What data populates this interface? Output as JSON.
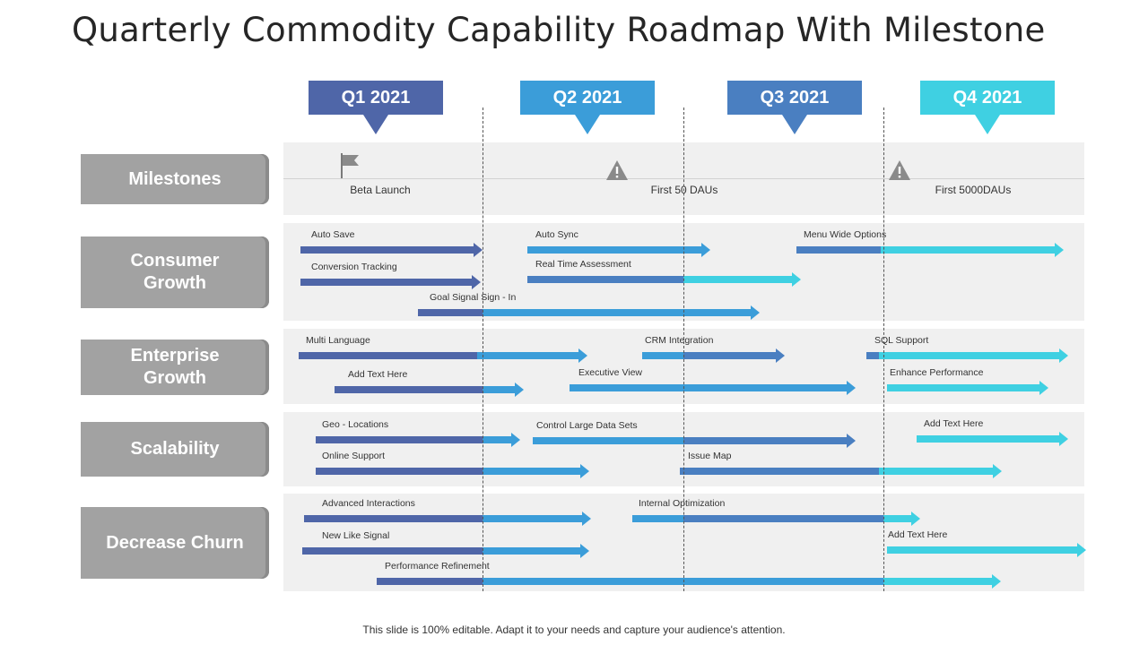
{
  "title": "Quarterly Commodity Capability Roadmap With Milestone",
  "quarters": [
    {
      "label": "Q1 2021",
      "color": "#4f66a8"
    },
    {
      "label": "Q2 2021",
      "color": "#3b9dd9"
    },
    {
      "label": "Q3 2021",
      "color": "#4a7fc1"
    },
    {
      "label": "Q4 2021",
      "color": "#3fd0e2"
    }
  ],
  "rows": [
    {
      "label": "Milestones"
    },
    {
      "label": "Consumer\nGrowth"
    },
    {
      "label": "Enterprise\nGrowth"
    },
    {
      "label": "Scalability"
    },
    {
      "label": "Decrease Churn"
    }
  ],
  "milestones": [
    {
      "label": "Beta Launch",
      "icon": "flag-icon"
    },
    {
      "label": "First 50 DAUs",
      "icon": "warning-icon"
    },
    {
      "label": "First 5000DAUs",
      "icon": "warning-icon"
    }
  ],
  "colors": {
    "q1": "#4f66a8",
    "q2": "#3b9dd9",
    "q3": "#4a7fc1",
    "q4": "#3fd0e2"
  },
  "tasks": [
    {
      "label": "Auto Save"
    },
    {
      "label": "Conversion Tracking"
    },
    {
      "label": "Auto Sync"
    },
    {
      "label": "Real Time  Assessment"
    },
    {
      "label": "Menu Wide Options"
    },
    {
      "label": "Goal Signal Sign - In"
    },
    {
      "label": "Multi Language"
    },
    {
      "label": "CRM  Integration"
    },
    {
      "label": "SQL Support"
    },
    {
      "label": "Add Text Here"
    },
    {
      "label": "Executive View"
    },
    {
      "label": "Enhance Performance"
    },
    {
      "label": "Geo - Locations"
    },
    {
      "label": "Control Large Data Sets"
    },
    {
      "label": "Add Text Here"
    },
    {
      "label": "Online Support"
    },
    {
      "label": "Issue Map"
    },
    {
      "label": "Advanced Interactions"
    },
    {
      "label": "Internal Optimization"
    },
    {
      "label": "New Like Signal"
    },
    {
      "label": "Add Text Here"
    },
    {
      "label": "Performance Refinement"
    }
  ],
  "footer": "This slide is 100% editable. Adapt it to your needs and capture your audience's attention."
}
